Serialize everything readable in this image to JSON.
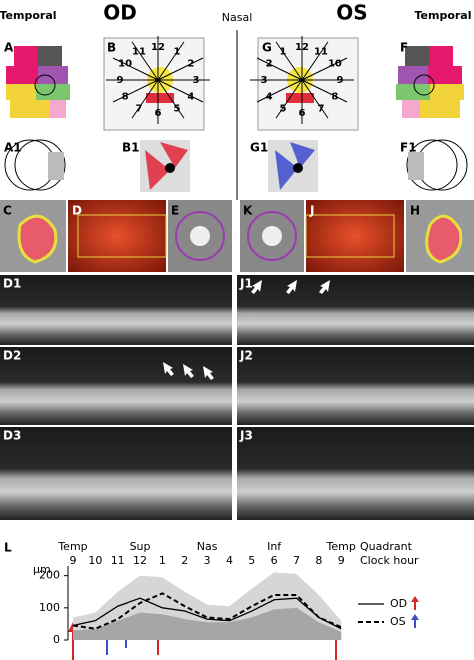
{
  "header": {
    "left": "Temporal",
    "od": "OD",
    "center": "Nasal",
    "os": "OS",
    "right": "Temporal"
  },
  "panel_labels": [
    "A",
    "B",
    "G",
    "F",
    "A1",
    "B1",
    "G1",
    "F1",
    "C",
    "D",
    "E",
    "K",
    "J",
    "H",
    "D1",
    "J1",
    "D2",
    "J2",
    "D3",
    "J3",
    "L"
  ],
  "clock_od": [
    12,
    1,
    2,
    3,
    4,
    5,
    6,
    7,
    8,
    9,
    10,
    11
  ],
  "clock_os": [
    12,
    1,
    2,
    3,
    4,
    5,
    6,
    7,
    8,
    9,
    10,
    11
  ],
  "chart_data": {
    "type": "line",
    "y_unit": "µm",
    "quadrant_title": "Quadrant",
    "clock_title": "Clock hour",
    "quadrants": [
      "Temp",
      "Sup",
      "Nas",
      "Inf",
      "Temp"
    ],
    "categories": [
      "9",
      "10",
      "11",
      "12",
      "1",
      "2",
      "3",
      "4",
      "5",
      "6",
      "7",
      "8",
      "9"
    ],
    "ylim": [
      0,
      230
    ],
    "yticks": [
      0,
      100,
      200
    ],
    "normal_range": {
      "lower": [
        30,
        35,
        60,
        85,
        80,
        65,
        55,
        55,
        70,
        95,
        100,
        55,
        25
      ],
      "upper": [
        70,
        85,
        150,
        200,
        195,
        150,
        110,
        105,
        160,
        210,
        205,
        140,
        60
      ]
    },
    "series": [
      {
        "name": "OD",
        "color": "#000000",
        "dash": false,
        "arrow_color": "#d62728",
        "values": [
          45,
          60,
          105,
          130,
          100,
          90,
          65,
          60,
          90,
          125,
          130,
          70,
          35
        ]
      },
      {
        "name": "OS",
        "color": "#000000",
        "dash": true,
        "arrow_color": "#3b4fc4",
        "values": [
          45,
          35,
          65,
          115,
          145,
          105,
          70,
          65,
          105,
          140,
          140,
          70,
          40
        ]
      }
    ]
  }
}
